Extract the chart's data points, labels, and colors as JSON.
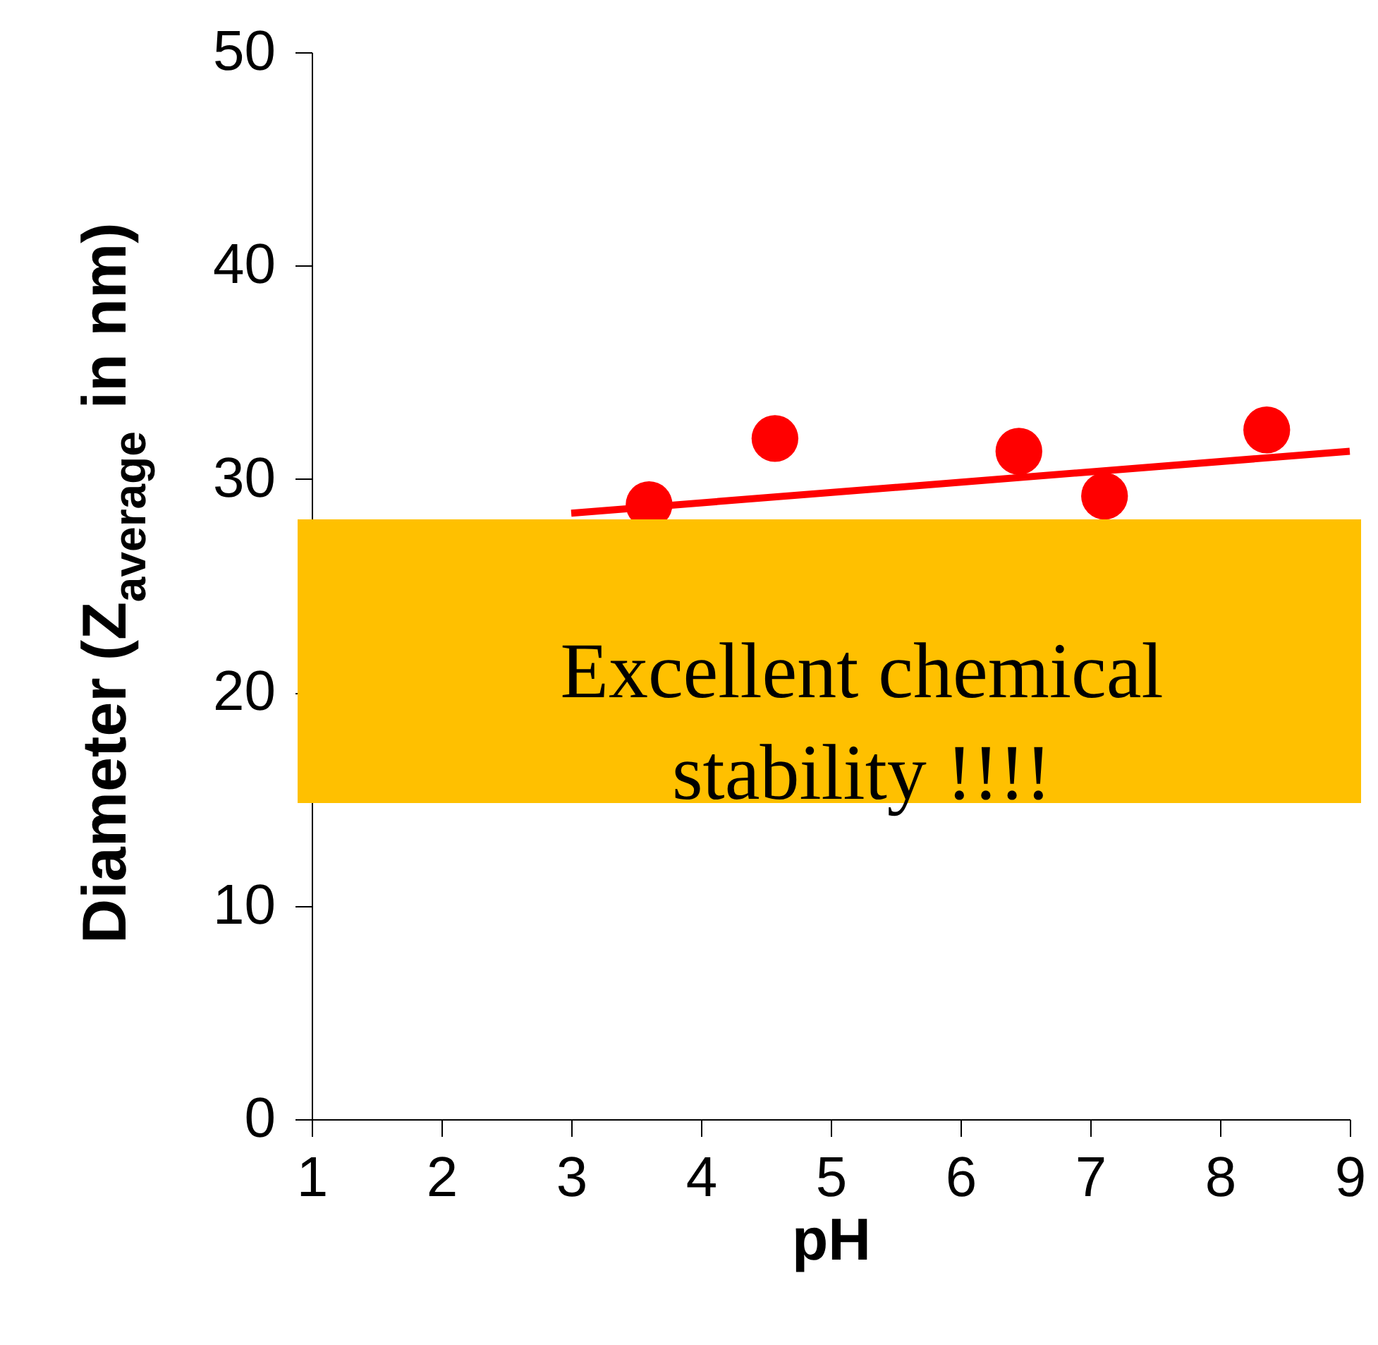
{
  "chart_data": {
    "type": "scatter",
    "xlabel": "pH",
    "ylabel": "Diameter (Z$_{average}$ in nm)",
    "xlim": [
      1,
      9
    ],
    "ylim": [
      0,
      50
    ],
    "xticks": [
      1,
      2,
      3,
      4,
      5,
      6,
      7,
      8,
      9
    ],
    "yticks": [
      0,
      10,
      20,
      30,
      40,
      50
    ],
    "grid": false,
    "marker": "circle",
    "series": [
      {
        "color": "#ff0000",
        "x": [
          3.6,
          4.57,
          6.45,
          7.11,
          8.36
        ],
        "values": [
          28.8,
          31.9,
          31.3,
          29.2,
          32.3
        ]
      },
      {
        "type": "line",
        "color": "#ff0000",
        "marker": "none",
        "line_style": "solid",
        "x": [
          3,
          9
        ],
        "values": [
          28.4,
          31.3
        ]
      }
    ],
    "annotations": [
      "Excellent chemical stability !!!!"
    ]
  }
}
